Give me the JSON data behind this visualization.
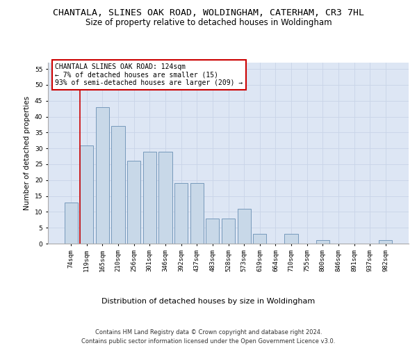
{
  "title": "CHANTALA, SLINES OAK ROAD, WOLDINGHAM, CATERHAM, CR3 7HL",
  "subtitle": "Size of property relative to detached houses in Woldingham",
  "xlabel": "Distribution of detached houses by size in Woldingham",
  "ylabel": "Number of detached properties",
  "categories": [
    "74sqm",
    "119sqm",
    "165sqm",
    "210sqm",
    "256sqm",
    "301sqm",
    "346sqm",
    "392sqm",
    "437sqm",
    "483sqm",
    "528sqm",
    "573sqm",
    "619sqm",
    "664sqm",
    "710sqm",
    "755sqm",
    "800sqm",
    "846sqm",
    "891sqm",
    "937sqm",
    "982sqm"
  ],
  "values": [
    13,
    31,
    43,
    37,
    26,
    29,
    29,
    19,
    19,
    8,
    8,
    11,
    3,
    0,
    3,
    0,
    1,
    0,
    0,
    0,
    1
  ],
  "bar_color": "#c8d8e8",
  "bar_edge_color": "#7799bb",
  "marker_line_color": "#cc0000",
  "annotation_text": "CHANTALA SLINES OAK ROAD: 124sqm\n← 7% of detached houses are smaller (15)\n93% of semi-detached houses are larger (209) →",
  "annotation_box_facecolor": "#ffffff",
  "annotation_box_edgecolor": "#cc0000",
  "ylim": [
    0,
    57
  ],
  "yticks": [
    0,
    5,
    10,
    15,
    20,
    25,
    30,
    35,
    40,
    45,
    50,
    55
  ],
  "grid_color": "#c8d4e8",
  "background_color": "#dde6f4",
  "footer_text": "Contains HM Land Registry data © Crown copyright and database right 2024.\nContains public sector information licensed under the Open Government Licence v3.0.",
  "title_fontsize": 9.5,
  "subtitle_fontsize": 8.5,
  "xlabel_fontsize": 8,
  "ylabel_fontsize": 7.5,
  "tick_fontsize": 6.5,
  "annotation_fontsize": 7,
  "footer_fontsize": 6
}
